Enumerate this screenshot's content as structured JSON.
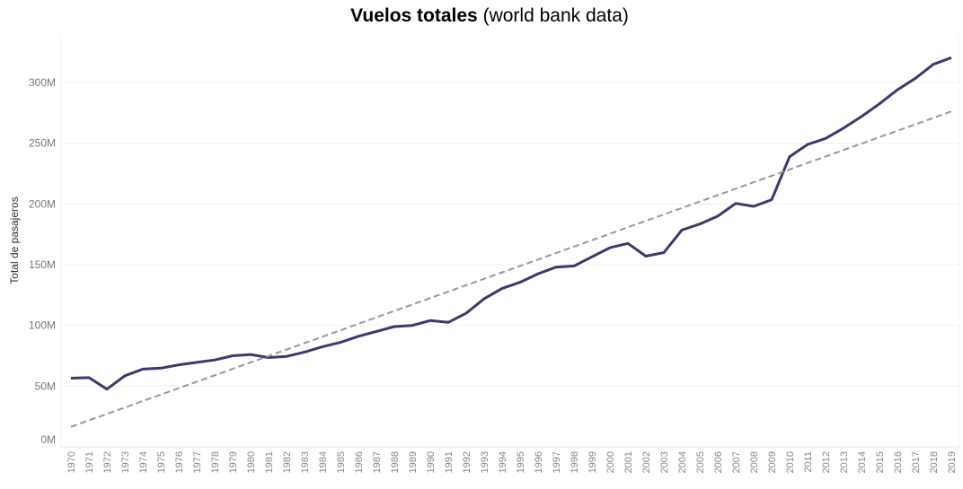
{
  "chart_data": {
    "type": "line",
    "title_bold": "Vuelos totales",
    "title_rest": "(world bank data)",
    "ylabel": "Total de pasajeros",
    "xlabel": "",
    "ylim": [
      0,
      340000000
    ],
    "yticks": [
      0,
      50000000,
      100000000,
      150000000,
      200000000,
      250000000,
      300000000
    ],
    "ytick_labels": [
      "0M",
      "50M",
      "100M",
      "150M",
      "200M",
      "250M",
      "300M"
    ],
    "grid": true,
    "x": [
      "1970",
      "1971",
      "1972",
      "1973",
      "1974",
      "1975",
      "1976",
      "1977",
      "1978",
      "1979",
      "1980",
      "1981",
      "1982",
      "1983",
      "1984",
      "1985",
      "1986",
      "1987",
      "1988",
      "1989",
      "1990",
      "1991",
      "1992",
      "1993",
      "1994",
      "1995",
      "1996",
      "1997",
      "1998",
      "1999",
      "2000",
      "2001",
      "2002",
      "2003",
      "2004",
      "2005",
      "2006",
      "2007",
      "2008",
      "2009",
      "2010",
      "2011",
      "2012",
      "2013",
      "2014",
      "2015",
      "2016",
      "2017",
      "2018",
      "2019"
    ],
    "series": [
      {
        "style": "solid",
        "color": "#3b3a6e",
        "values": [
          56500000,
          57000000,
          47500000,
          58500000,
          64000000,
          64800000,
          67500000,
          69500000,
          71500000,
          75000000,
          76000000,
          73500000,
          74500000,
          78000000,
          82500000,
          86000000,
          91000000,
          95000000,
          99000000,
          100000000,
          104000000,
          102500000,
          110000000,
          122000000,
          130500000,
          135500000,
          142500000,
          148000000,
          149000000,
          156500000,
          164000000,
          167500000,
          157000000,
          160000000,
          178500000,
          183500000,
          190000000,
          200500000,
          198000000,
          203500000,
          239000000,
          249000000,
          254000000,
          262500000,
          272000000,
          282500000,
          294000000,
          303500000,
          315000000,
          320500000
        ]
      },
      {
        "style": "dashed",
        "color": "#999999",
        "values": [
          16500000,
          21800000,
          27100000,
          32400000,
          37700000,
          43000000,
          48300000,
          53600000,
          58900000,
          64200000,
          69500000,
          74800000,
          80100000,
          85400000,
          90700000,
          96000000,
          101300000,
          106600000,
          111900000,
          117200000,
          122500000,
          127800000,
          133100000,
          138400000,
          143700000,
          149000000,
          154300000,
          159600000,
          164900000,
          170200000,
          175500000,
          180800000,
          186100000,
          191400000,
          196700000,
          202000000,
          207300000,
          212600000,
          217900000,
          223200000,
          228500000,
          233800000,
          239100000,
          244400000,
          249700000,
          255000000,
          260300000,
          265600000,
          270900000,
          276200000
        ]
      }
    ]
  }
}
